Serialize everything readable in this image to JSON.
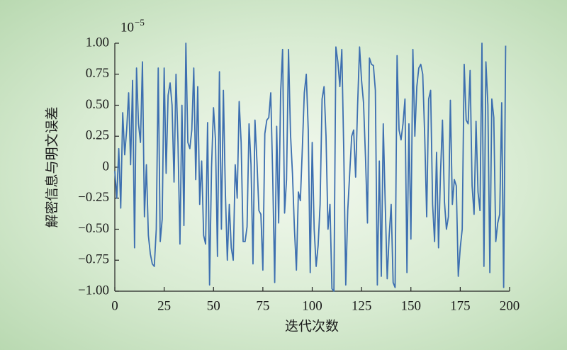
{
  "chart_data": {
    "type": "line",
    "xlabel": "迭代次数",
    "ylabel": "解密信息与明文误差",
    "y_scale_base": "10",
    "y_scale_exponent": "−5",
    "color": "#3d6fb0",
    "x": [
      0,
      1,
      2,
      3,
      4,
      5,
      6,
      7,
      8,
      9,
      10,
      11,
      12,
      13,
      14,
      15,
      16,
      17,
      18,
      19,
      20,
      21,
      22,
      23,
      24,
      25,
      26,
      27,
      28,
      29,
      30,
      31,
      32,
      33,
      34,
      35,
      36,
      37,
      38,
      39,
      40,
      41,
      42,
      43,
      44,
      45,
      46,
      47,
      48,
      49,
      50,
      51,
      52,
      53,
      54,
      55,
      56,
      57,
      58,
      59,
      60,
      61,
      62,
      63,
      64,
      65,
      66,
      67,
      68,
      69,
      70,
      71,
      72,
      73,
      74,
      75,
      76,
      77,
      78,
      79,
      80,
      81,
      82,
      83,
      84,
      85,
      86,
      87,
      88,
      89,
      90,
      91,
      92,
      93,
      94,
      95,
      96,
      97,
      98,
      99,
      100,
      101,
      102,
      103,
      104,
      105,
      106,
      107,
      108,
      109,
      110,
      111,
      112,
      113,
      114,
      115,
      116,
      117,
      118,
      119,
      120,
      121,
      122,
      123,
      124,
      125,
      126,
      127,
      128,
      129,
      130,
      131,
      132,
      133,
      134,
      135,
      136,
      137,
      138,
      139,
      140,
      141,
      142,
      143,
      144,
      145,
      146,
      147,
      148,
      149,
      150,
      151,
      152,
      153,
      154,
      155,
      156,
      157,
      158,
      159,
      160,
      161,
      162,
      163,
      164,
      165,
      166,
      167,
      168,
      169,
      170,
      171,
      172,
      173,
      174,
      175,
      176,
      177,
      178,
      179,
      180,
      181,
      182,
      183,
      184,
      185,
      186,
      187,
      188,
      189,
      190,
      191,
      192,
      193,
      194,
      195,
      196,
      197,
      198
    ],
    "values": [
      -0.03,
      -0.25,
      0.15,
      -0.33,
      0.44,
      0.1,
      0.3,
      0.6,
      0.02,
      0.7,
      -0.65,
      0.8,
      0.35,
      0.2,
      0.85,
      -0.4,
      0.02,
      -0.55,
      -0.7,
      -0.78,
      -0.8,
      -0.5,
      0.8,
      -0.6,
      -0.42,
      0.8,
      -0.05,
      0.58,
      0.68,
      0.5,
      -0.12,
      0.75,
      0.2,
      -0.62,
      0.5,
      -0.47,
      1.0,
      0.2,
      0.15,
      0.3,
      0.8,
      -0.1,
      0.65,
      -0.3,
      0.05,
      -0.55,
      -0.62,
      0.36,
      -0.95,
      0.0,
      0.48,
      0.22,
      -0.72,
      0.77,
      -0.5,
      0.62,
      -0.2,
      -0.75,
      -0.3,
      -0.65,
      -0.75,
      0.02,
      -0.25,
      0.53,
      0.2,
      -0.6,
      -0.6,
      -0.48,
      0.35,
      0.02,
      -0.78,
      0.38,
      0.05,
      -0.35,
      -0.38,
      -0.83,
      0.27,
      0.38,
      0.4,
      0.6,
      -0.08,
      -0.93,
      0.33,
      -0.45,
      0.6,
      0.95,
      -0.37,
      -0.1,
      0.95,
      0.27,
      -0.05,
      -0.5,
      -0.83,
      -0.2,
      -0.27,
      0.15,
      0.6,
      0.75,
      0.3,
      -0.85,
      0.2,
      -0.5,
      -0.8,
      -0.63,
      -0.3,
      0.55,
      0.65,
      0.25,
      -0.5,
      -0.3,
      -0.98,
      -1.0,
      0.97,
      0.85,
      0.65,
      0.95,
      0.12,
      -0.95,
      -0.35,
      -0.05,
      0.25,
      0.3,
      -0.08,
      0.5,
      0.97,
      0.7,
      0.52,
      0.08,
      -0.45,
      0.88,
      0.83,
      0.82,
      0.62,
      -0.95,
      0.05,
      -0.88,
      0.35,
      -0.3,
      -0.9,
      -0.55,
      -0.3,
      -0.93,
      -0.97,
      0.9,
      0.3,
      0.22,
      0.35,
      0.55,
      -0.85,
      0.35,
      -0.58,
      0.95,
      0.25,
      0.65,
      0.8,
      0.83,
      0.75,
      0.25,
      -0.4,
      0.55,
      0.62,
      -0.3,
      -0.6,
      0.12,
      -0.65,
      -0.05,
      0.38,
      -0.28,
      -0.5,
      -0.4,
      0.54,
      -0.3,
      -0.1,
      -0.15,
      -0.88,
      -0.65,
      -0.5,
      0.83,
      0.38,
      0.35,
      0.78,
      -0.15,
      -0.38,
      0.37,
      -0.2,
      -0.35,
      1.0,
      -0.8,
      0.85,
      0.5,
      -0.85,
      0.55,
      0.4,
      -0.6,
      -0.45,
      -0.38,
      0.52,
      -0.97,
      0.98
    ],
    "xlim": [
      0,
      200
    ],
    "xticks": [
      0,
      25,
      50,
      75,
      100,
      125,
      150,
      175,
      200
    ],
    "ylim": [
      -1,
      1
    ],
    "yticks": [
      {
        "value": -1,
        "label": "−1.00"
      },
      {
        "value": -0.75,
        "label": "−0.75"
      },
      {
        "value": -0.5,
        "label": "−0.50"
      },
      {
        "value": -0.25,
        "label": "−0.25"
      },
      0,
      {
        "value": 0.25,
        "label": "0.25"
      },
      {
        "value": 0.5,
        "label": "0.50"
      },
      {
        "value": 0.75,
        "label": "0.75"
      },
      {
        "value": 1,
        "label": "1.00"
      }
    ]
  }
}
